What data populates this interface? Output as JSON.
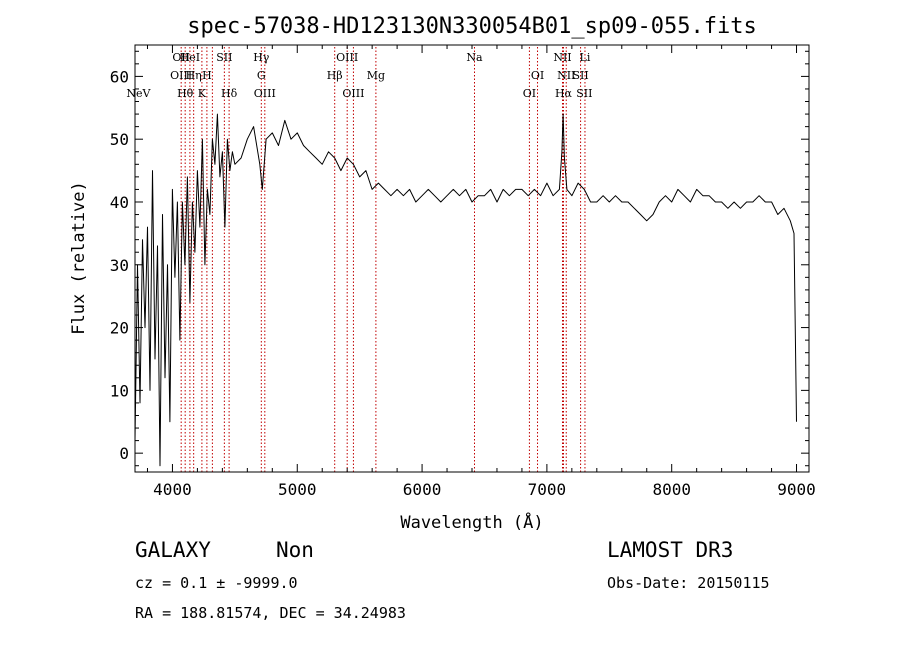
{
  "chart_data": {
    "type": "line",
    "title": "spec-57038-HD123130N330054B01_sp09-055.fits",
    "xlabel": "Wavelength (Å)",
    "ylabel": "Flux (relative)",
    "xlim": [
      3700,
      9100
    ],
    "ylim": [
      -3,
      65
    ],
    "x_ticks": [
      4000,
      5000,
      6000,
      7000,
      8000,
      9000
    ],
    "y_ticks": [
      0,
      10,
      20,
      30,
      40,
      50,
      60
    ],
    "grid": false,
    "series": [
      {
        "x": [
          3700,
          3720,
          3740,
          3760,
          3780,
          3800,
          3820,
          3840,
          3860,
          3880,
          3900,
          3920,
          3940,
          3960,
          3980,
          4000,
          4020,
          4040,
          4060,
          4080,
          4100,
          4120,
          4140,
          4160,
          4180,
          4200,
          4220,
          4240,
          4260,
          4280,
          4300,
          4320,
          4340,
          4360,
          4380,
          4400,
          4420,
          4440,
          4460,
          4480,
          4500,
          4550,
          4600,
          4650,
          4700,
          4720,
          4750,
          4800,
          4850,
          4900,
          4950,
          5000,
          5050,
          5100,
          5150,
          5200,
          5250,
          5300,
          5350,
          5400,
          5450,
          5500,
          5550,
          5600,
          5650,
          5700,
          5750,
          5800,
          5850,
          5900,
          5950,
          6000,
          6050,
          6100,
          6150,
          6200,
          6250,
          6300,
          6350,
          6400,
          6450,
          6500,
          6550,
          6600,
          6650,
          6700,
          6750,
          6800,
          6850,
          6900,
          6950,
          7000,
          7050,
          7100,
          7120,
          7130,
          7140,
          7160,
          7200,
          7250,
          7300,
          7350,
          7400,
          7450,
          7500,
          7550,
          7600,
          7650,
          7700,
          7750,
          7800,
          7850,
          7900,
          7950,
          8000,
          8050,
          8100,
          8150,
          8200,
          8250,
          8300,
          8350,
          8400,
          8450,
          8500,
          8550,
          8600,
          8650,
          8700,
          8750,
          8800,
          8850,
          8900,
          8950,
          8980,
          9000
        ],
        "y": [
          2,
          30,
          8,
          34,
          20,
          36,
          10,
          45,
          15,
          33,
          -2,
          38,
          12,
          30,
          5,
          42,
          28,
          40,
          18,
          40,
          30,
          44,
          24,
          40,
          32,
          45,
          36,
          50,
          30,
          42,
          38,
          50,
          46,
          54,
          44,
          48,
          36,
          50,
          45,
          48,
          46,
          47,
          50,
          52,
          46,
          42,
          50,
          51,
          49,
          53,
          50,
          51,
          49,
          48,
          47,
          46,
          48,
          47,
          45,
          47,
          46,
          44,
          45,
          42,
          43,
          42,
          41,
          42,
          41,
          42,
          40,
          41,
          42,
          41,
          40,
          41,
          42,
          41,
          42,
          40,
          41,
          41,
          42,
          40,
          42,
          41,
          42,
          42,
          41,
          42,
          41,
          43,
          41,
          42,
          48,
          54,
          47,
          42,
          41,
          43,
          42,
          40,
          40,
          41,
          40,
          41,
          40,
          40,
          39,
          38,
          37,
          38,
          40,
          41,
          40,
          42,
          41,
          40,
          42,
          41,
          41,
          40,
          40,
          39,
          40,
          39,
          40,
          40,
          41,
          40,
          40,
          38,
          39,
          37,
          35,
          5
        ]
      }
    ],
    "line_markers": [
      {
        "label": "NeV",
        "x": 3727,
        "row": 3
      },
      {
        "label": "OII",
        "x": 4070,
        "row": 1
      },
      {
        "label": "OIII",
        "x": 4070,
        "row": 2
      },
      {
        "label": "Hθ",
        "x": 4102,
        "row": 3
      },
      {
        "label": "HeI",
        "x": 4140,
        "row": 1
      },
      {
        "label": "Hη",
        "x": 4170,
        "row": 2
      },
      {
        "label": "K",
        "x": 4236,
        "row": 3
      },
      {
        "label": "H",
        "x": 4276,
        "row": 2
      },
      {
        "label": "SII",
        "x": 4416,
        "row": 1
      },
      {
        "label": "Hδ",
        "x": 4454,
        "row": 3
      },
      {
        "label": "Hγ",
        "x": 4712,
        "row": 1
      },
      {
        "label": "G",
        "x": 4712,
        "row": 2
      },
      {
        "label": "OIII",
        "x": 4740,
        "row": 3
      },
      {
        "label": "OIII",
        "x": 5400,
        "row": 1
      },
      {
        "label": "Hβ",
        "x": 5300,
        "row": 2
      },
      {
        "label": "OIII",
        "x": 5450,
        "row": 3
      },
      {
        "label": "Mg",
        "x": 5630,
        "row": 2
      },
      {
        "label": "Na",
        "x": 6420,
        "row": 1
      },
      {
        "label": "OI",
        "x": 6925,
        "row": 2
      },
      {
        "label": "OI",
        "x": 6860,
        "row": 3
      },
      {
        "label": "NII",
        "x": 7125,
        "row": 1
      },
      {
        "label": "NII",
        "x": 7155,
        "row": 2
      },
      {
        "label": "Hα",
        "x": 7133,
        "row": 3
      },
      {
        "label": "Li",
        "x": 7305,
        "row": 1
      },
      {
        "label": "SII",
        "x": 7270,
        "row": 2
      },
      {
        "label": "SII",
        "x": 7300,
        "row": 3
      }
    ],
    "marker_lines_x": [
      4070,
      4102,
      4140,
      4170,
      4236,
      4276,
      4320,
      4416,
      4454,
      4712,
      4740,
      5300,
      5400,
      5450,
      5630,
      6420,
      6860,
      6925,
      7125,
      7133,
      7155,
      7270,
      7305
    ],
    "colors": {
      "line": "#000000",
      "marker": "#c00000",
      "axes": "#000000"
    }
  },
  "info": {
    "class_label": "GALAXY",
    "subclass": "Non",
    "survey": "LAMOST DR3",
    "cz_line": "cz = 0.1 ± -9999.0",
    "obs_date": "Obs-Date: 20150115",
    "radec": "RA = 188.81574, DEC =  34.24983"
  }
}
